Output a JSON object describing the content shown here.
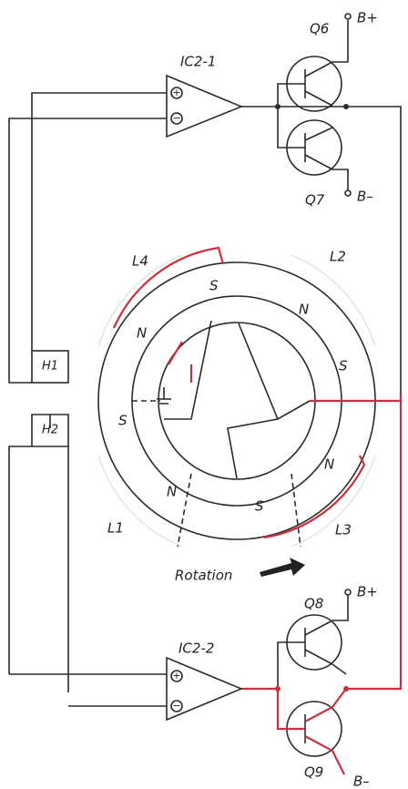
{
  "transistors": {
    "q6": {
      "label": "Q6",
      "terminal": "B+"
    },
    "q7": {
      "label": "Q7",
      "terminal": "B–"
    },
    "q8": {
      "label": "Q8",
      "terminal": "B+"
    },
    "q9": {
      "label": "Q9",
      "terminal": "B–"
    }
  },
  "amplifiers": {
    "ic2_1": {
      "label": "IC2-1",
      "plus": "+",
      "minus": "−"
    },
    "ic2_2": {
      "label": "IC2-2",
      "plus": "+",
      "minus": "−"
    }
  },
  "coils": [
    "L4",
    "L2",
    "L1",
    "L3"
  ],
  "sensors": [
    "H1",
    "H2"
  ],
  "poles": [
    "S",
    "N",
    "S",
    "N",
    "S",
    "N",
    "S",
    "N"
  ],
  "rotation": "Rotation"
}
